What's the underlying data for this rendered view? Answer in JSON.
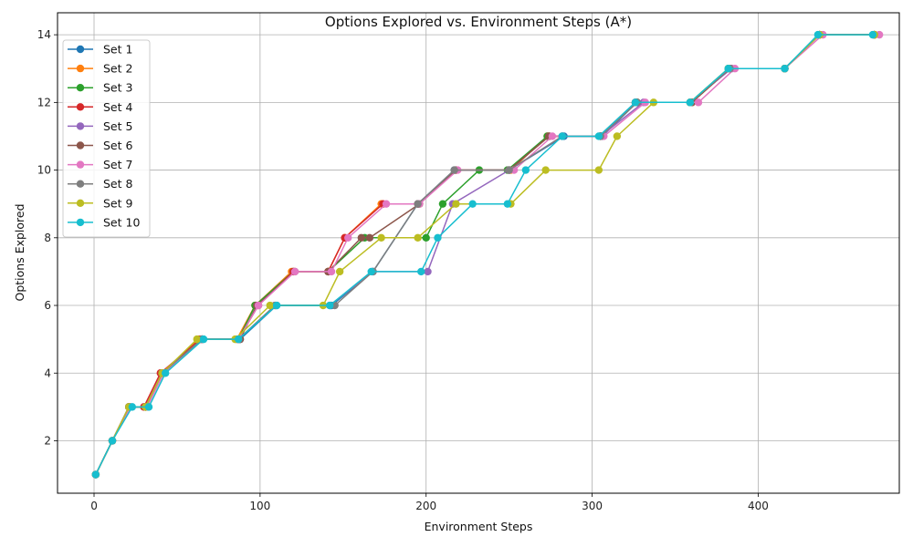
{
  "chart_data": {
    "type": "line",
    "title": "Options Explored vs. Environment Steps (A*)",
    "xlabel": "Environment Steps",
    "ylabel": "Options Explored",
    "xlim": [
      -22,
      485
    ],
    "ylim": [
      0.45,
      14.65
    ],
    "xticks": [
      0,
      100,
      200,
      300,
      400
    ],
    "yticks": [
      2,
      4,
      6,
      8,
      10,
      12,
      14
    ],
    "grid": true,
    "legend_position": "top-left",
    "markers": "circle",
    "series": [
      {
        "name": "Set 1",
        "color": "#1f77b4",
        "x": [
          1,
          11,
          21,
          31,
          41,
          65,
          88,
          110,
          143,
          168,
          195,
          217,
          250,
          283,
          306,
          327,
          360,
          383,
          416,
          437,
          470
        ],
        "y": [
          1,
          2,
          3,
          3,
          4,
          5,
          5,
          6,
          6,
          7,
          9,
          10,
          10,
          11,
          11,
          12,
          12,
          13,
          13,
          14,
          14
        ]
      },
      {
        "name": "Set 2",
        "color": "#ff7f0e",
        "x": [
          1,
          11,
          21,
          31,
          41,
          63,
          86,
          97,
          119,
          141,
          151,
          173,
          196,
          218,
          251,
          273,
          305,
          327,
          360,
          383,
          416,
          437,
          470
        ],
        "y": [
          1,
          2,
          3,
          3,
          4,
          5,
          5,
          6,
          7,
          7,
          8,
          9,
          9,
          10,
          10,
          11,
          11,
          12,
          12,
          13,
          13,
          14,
          14
        ]
      },
      {
        "name": "Set 3",
        "color": "#2ca02c",
        "x": [
          1,
          11,
          21,
          31,
          41,
          65,
          87,
          97,
          120,
          141,
          163,
          200,
          210,
          232,
          249,
          273,
          305,
          327,
          359,
          382,
          416,
          437,
          470
        ],
        "y": [
          1,
          2,
          3,
          3,
          4,
          5,
          5,
          6,
          7,
          7,
          8,
          8,
          9,
          10,
          10,
          11,
          11,
          12,
          12,
          13,
          13,
          14,
          14
        ]
      },
      {
        "name": "Set 4",
        "color": "#d62728",
        "x": [
          1,
          11,
          21,
          30,
          40,
          64,
          87,
          99,
          120,
          141,
          151,
          174,
          195,
          218,
          250,
          274,
          305,
          326,
          360,
          383,
          416,
          437,
          470
        ],
        "y": [
          1,
          2,
          3,
          3,
          4,
          5,
          5,
          6,
          7,
          7,
          8,
          9,
          9,
          10,
          10,
          11,
          11,
          12,
          12,
          13,
          13,
          14,
          14
        ]
      },
      {
        "name": "Set 5",
        "color": "#9467bd",
        "x": [
          1,
          11,
          21,
          31,
          41,
          65,
          87,
          109,
          142,
          168,
          201,
          216,
          250,
          282,
          305,
          331,
          359,
          384,
          416,
          437,
          470
        ],
        "y": [
          1,
          2,
          3,
          3,
          4,
          5,
          5,
          6,
          6,
          7,
          7,
          9,
          10,
          11,
          11,
          12,
          12,
          13,
          13,
          14,
          14
        ]
      },
      {
        "name": "Set 6",
        "color": "#8c564b",
        "x": [
          1,
          11,
          21,
          31,
          41,
          65,
          88,
          98,
          121,
          141,
          161,
          166,
          196,
          218,
          250,
          274,
          305,
          327,
          360,
          383,
          416,
          437,
          470
        ],
        "y": [
          1,
          2,
          3,
          3,
          4,
          5,
          5,
          6,
          7,
          7,
          8,
          8,
          9,
          10,
          10,
          11,
          11,
          12,
          12,
          13,
          13,
          14,
          14
        ]
      },
      {
        "name": "Set 7",
        "color": "#e377c2",
        "x": [
          1,
          11,
          22,
          32,
          42,
          65,
          87,
          99,
          121,
          143,
          153,
          176,
          196,
          219,
          253,
          276,
          307,
          332,
          364,
          386,
          416,
          439,
          473
        ],
        "y": [
          1,
          2,
          3,
          3,
          4,
          5,
          5,
          6,
          7,
          7,
          8,
          9,
          9,
          10,
          10,
          11,
          11,
          12,
          12,
          13,
          13,
          14,
          14
        ]
      },
      {
        "name": "Set 8",
        "color": "#7f7f7f",
        "x": [
          1,
          11,
          21,
          31,
          41,
          65,
          87,
          109,
          145,
          168,
          195,
          217,
          250,
          282,
          305,
          327,
          359,
          383,
          416,
          437,
          470
        ],
        "y": [
          1,
          2,
          3,
          3,
          4,
          5,
          5,
          6,
          6,
          7,
          9,
          10,
          10,
          11,
          11,
          12,
          12,
          13,
          13,
          14,
          14
        ]
      },
      {
        "name": "Set 9",
        "color": "#bcbd22",
        "x": [
          1,
          11,
          21,
          31,
          41,
          62,
          85,
          106,
          138,
          148,
          173,
          195,
          218,
          251,
          272,
          304,
          315,
          337,
          359,
          382,
          416,
          437,
          470
        ],
        "y": [
          1,
          2,
          3,
          3,
          4,
          5,
          5,
          6,
          6,
          7,
          8,
          8,
          9,
          9,
          10,
          10,
          11,
          12,
          12,
          13,
          13,
          14,
          14
        ]
      },
      {
        "name": "Set 10",
        "color": "#17becf",
        "x": [
          1,
          11,
          23,
          33,
          43,
          66,
          87,
          110,
          142,
          167,
          197,
          207,
          228,
          249,
          260,
          282,
          304,
          326,
          359,
          382,
          416,
          436,
          469
        ],
        "y": [
          1,
          2,
          3,
          3,
          4,
          5,
          5,
          6,
          6,
          7,
          7,
          8,
          9,
          9,
          10,
          11,
          11,
          12,
          12,
          13,
          13,
          14,
          14
        ]
      }
    ]
  }
}
